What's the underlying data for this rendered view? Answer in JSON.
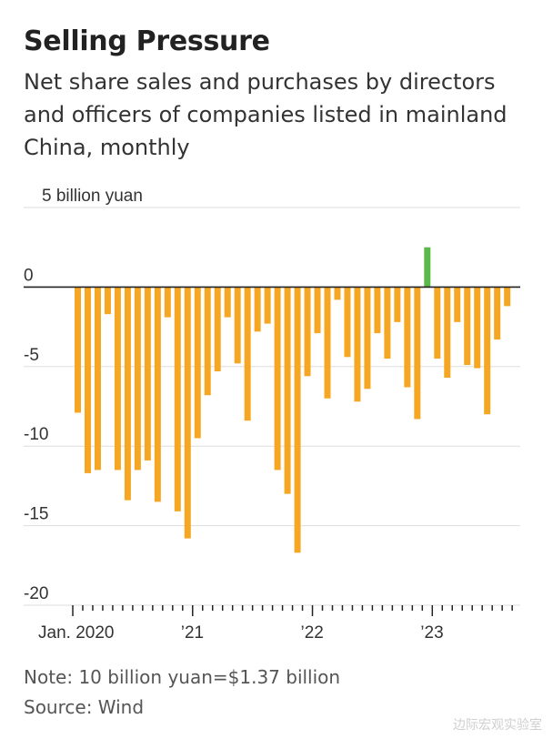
{
  "title": "Selling Pressure",
  "subtitle": "Net share sales and purchases by directors and officers of companies listed in mainland China, monthly",
  "note": "Note: 10 billion yuan=$1.37 billion",
  "source": "Source: Wind",
  "watermark": "边际宏观实验室",
  "colors": {
    "negative": "#F5A623",
    "positive": "#5BB84B",
    "grid": "#dddddd",
    "axis": "#222222"
  },
  "chart_data": {
    "type": "bar",
    "unit_label": "5 billion yuan",
    "ylim": [
      -20,
      5
    ],
    "yticks": [
      {
        "value": 5,
        "label": "5 billion yuan"
      },
      {
        "value": 0,
        "label": "0"
      },
      {
        "value": -5,
        "label": "-5"
      },
      {
        "value": -10,
        "label": "-10"
      },
      {
        "value": -15,
        "label": "-15"
      },
      {
        "value": -20,
        "label": "-20"
      }
    ],
    "x_labels": [
      {
        "index": 0,
        "label": "Jan. 2020"
      },
      {
        "index": 12,
        "label": "’21"
      },
      {
        "index": 24,
        "label": "’22"
      },
      {
        "index": 36,
        "label": "’23"
      }
    ],
    "categories": [
      "2020-01",
      "2020-02",
      "2020-03",
      "2020-04",
      "2020-05",
      "2020-06",
      "2020-07",
      "2020-08",
      "2020-09",
      "2020-10",
      "2020-11",
      "2020-12",
      "2021-01",
      "2021-02",
      "2021-03",
      "2021-04",
      "2021-05",
      "2021-06",
      "2021-07",
      "2021-08",
      "2021-09",
      "2021-10",
      "2021-11",
      "2021-12",
      "2022-01",
      "2022-02",
      "2022-03",
      "2022-04",
      "2022-05",
      "2022-06",
      "2022-07",
      "2022-08",
      "2022-09",
      "2022-10",
      "2022-11",
      "2022-12",
      "2023-01",
      "2023-02",
      "2023-03",
      "2023-04",
      "2023-05",
      "2023-06",
      "2023-07",
      "2023-08"
    ],
    "values": [
      -7.9,
      -11.7,
      -11.5,
      -1.7,
      -11.5,
      -13.4,
      -11.5,
      -10.9,
      -13.5,
      -1.9,
      -14.1,
      -15.8,
      -9.5,
      -6.8,
      -5.3,
      -1.9,
      -4.8,
      -8.4,
      -2.8,
      -2.3,
      -11.5,
      -13.0,
      -16.7,
      -5.6,
      -2.9,
      -7.0,
      -0.8,
      -4.4,
      -7.2,
      -6.4,
      -2.9,
      -4.5,
      -2.2,
      -6.3,
      -8.3,
      2.5,
      -4.5,
      -5.7,
      -2.2,
      -4.9,
      -5.1,
      -8.0,
      -3.3,
      -1.2
    ]
  }
}
